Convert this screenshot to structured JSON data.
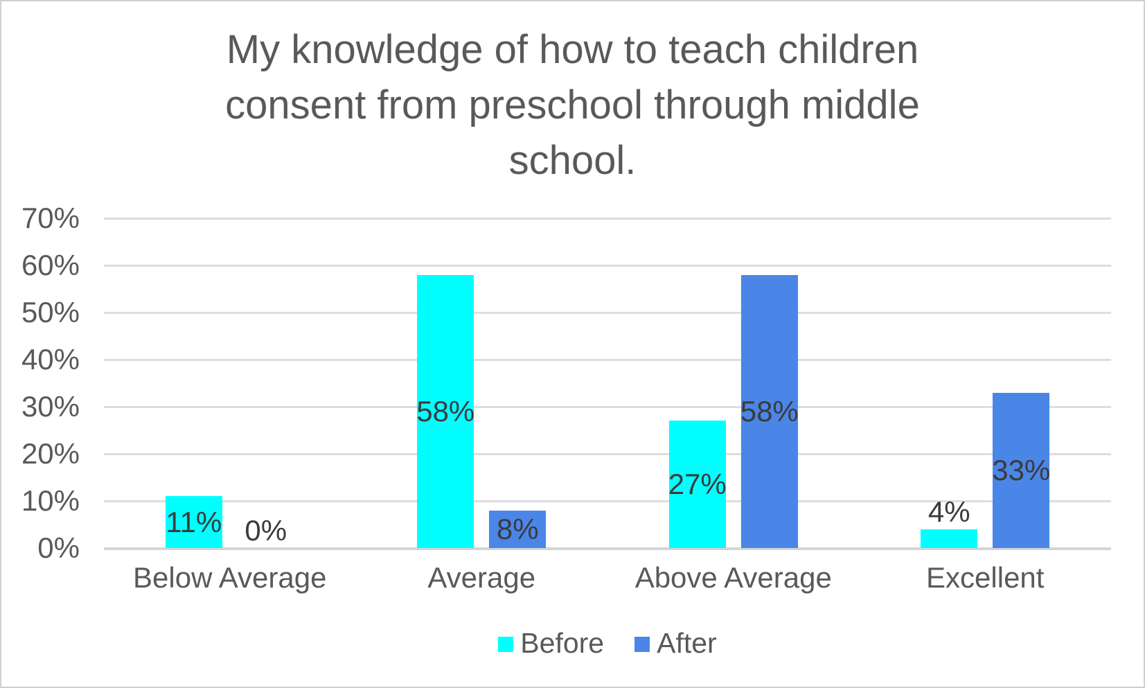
{
  "frame": {
    "background": "#FFFFFF",
    "border_color": "#CFCFCF"
  },
  "styles": {
    "title_color": "#595959",
    "axis_text_color": "#595959",
    "data_label_color": "#3B3B3B",
    "gridline_color": "#DDDDDD",
    "axis_line_color": "#D5D5D5"
  },
  "chart_data": {
    "type": "bar",
    "title": "My knowledge of how to teach children consent from preschool through middle school.",
    "title_lines": [
      "My knowledge of how to teach children",
      "consent from preschool through middle",
      "school."
    ],
    "categories": [
      "Below Average",
      "Average",
      "Above Average",
      "Excellent"
    ],
    "series": [
      {
        "name": "Before",
        "color": "#00FFFF",
        "values": [
          11,
          58,
          27,
          4
        ],
        "data_labels": [
          "11%",
          "58%",
          "27%",
          "4%"
        ]
      },
      {
        "name": "After",
        "color": "#4A86E8",
        "values": [
          0,
          8,
          58,
          33
        ],
        "data_labels": [
          "0%",
          "8%",
          "58%",
          "33%"
        ]
      }
    ],
    "y_ticks": [
      {
        "value": 0,
        "label": "0%"
      },
      {
        "value": 10,
        "label": "10%"
      },
      {
        "value": 20,
        "label": "20%"
      },
      {
        "value": 30,
        "label": "30%"
      },
      {
        "value": 40,
        "label": "40%"
      },
      {
        "value": 50,
        "label": "50%"
      },
      {
        "value": 60,
        "label": "60%"
      },
      {
        "value": 70,
        "label": "70%"
      }
    ],
    "ylim": [
      0,
      70
    ],
    "xlabel": "",
    "ylabel": "",
    "grid": true,
    "legend_position": "bottom"
  }
}
